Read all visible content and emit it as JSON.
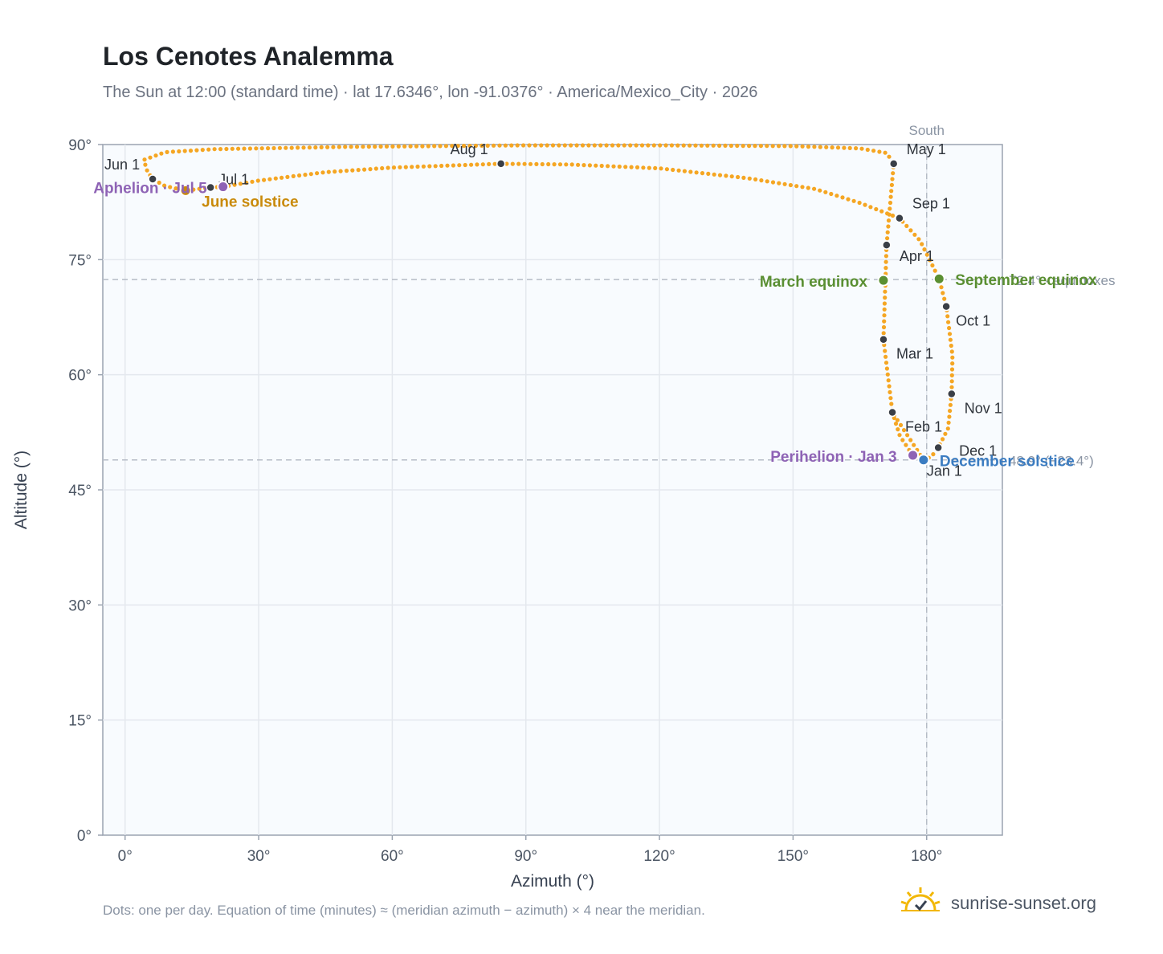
{
  "title": "Los Cenotes Analemma",
  "subtitle": "The Sun at 12:00 (standard time) · lat 17.6346°, lon -91.0376° · America/Mexico_City · 2026",
  "footnote": "Dots: one per day. Equation of time (minutes) ≈ (meridian azimuth − azimuth) × 4 near the meridian.",
  "brand": {
    "name": "sunrise-sunset.org",
    "icon": "sun-logo-icon"
  },
  "colors": {
    "curve": "#f5a623",
    "month_marker": "#3a3f47",
    "apsis": "#8e63b5",
    "equinox": "#5a8f32",
    "solstice_june": "#c98a0a",
    "solstice_december": "#3b7cc1",
    "reference_line": "#b6bcc6",
    "plot_bg": "#f8fbfe",
    "grid": "#e4e8ee",
    "axis": "#9aa3b0"
  },
  "chart_data": {
    "type": "scatter",
    "xlabel": "Azimuth (°)",
    "ylabel": "Altitude (°)",
    "xlim": [
      -5,
      197
    ],
    "ylim": [
      0,
      90
    ],
    "xticks": [
      0,
      30,
      60,
      90,
      120,
      150,
      180
    ],
    "yticks": [
      0,
      15,
      30,
      45,
      60,
      75,
      90
    ],
    "tick_suffix": "°",
    "grid": true,
    "meridian": {
      "azimuth": 180,
      "label": "South"
    },
    "reference_lines": [
      {
        "altitude": 72.4,
        "label": "72.4° · equinoxes"
      },
      {
        "altitude": 48.9,
        "label": "48.9° (−23.4°)"
      }
    ],
    "month_markers": [
      {
        "label": "Jan 1",
        "azimuth": 179.3,
        "altitude": 48.9
      },
      {
        "label": "Feb 1",
        "azimuth": 172.3,
        "altitude": 55.1
      },
      {
        "label": "Mar 1",
        "azimuth": 170.3,
        "altitude": 64.6
      },
      {
        "label": "Apr 1",
        "azimuth": 171.0,
        "altitude": 76.9
      },
      {
        "label": "May 1",
        "azimuth": 172.6,
        "altitude": 87.5
      },
      {
        "label": "Jun 1",
        "azimuth": 6.2,
        "altitude": 85.5
      },
      {
        "label": "Jul 1",
        "azimuth": 19.2,
        "altitude": 84.4
      },
      {
        "label": "Aug 1",
        "azimuth": 84.4,
        "altitude": 87.5
      },
      {
        "label": "Sep 1",
        "azimuth": 173.9,
        "altitude": 80.4
      },
      {
        "label": "Oct 1",
        "azimuth": 184.4,
        "altitude": 68.9
      },
      {
        "label": "Nov 1",
        "azimuth": 185.6,
        "altitude": 57.5
      },
      {
        "label": "Dec 1",
        "azimuth": 182.6,
        "altitude": 50.5
      }
    ],
    "events": [
      {
        "label": "March equinox",
        "azimuth": 170.3,
        "altitude": 72.3,
        "kind": "equinox"
      },
      {
        "label": "September equinox",
        "azimuth": 182.8,
        "altitude": 72.5,
        "kind": "equinox"
      },
      {
        "label": "June solstice",
        "azimuth": 13.6,
        "altitude": 84.0,
        "kind": "solstice_june"
      },
      {
        "label": "December solstice",
        "azimuth": 179.3,
        "altitude": 48.9,
        "kind": "solstice_december"
      },
      {
        "label": "Perihelion · Jan 3",
        "azimuth": 176.9,
        "altitude": 49.5,
        "kind": "apsis"
      },
      {
        "label": "Aphelion · Jul 5",
        "azimuth": 22.0,
        "altitude": 84.5,
        "kind": "apsis"
      }
    ],
    "path": [
      [
        179.3,
        48.9
      ],
      [
        172.3,
        55.1
      ],
      [
        170.3,
        64.6
      ],
      [
        171.0,
        76.9
      ],
      [
        172.6,
        87.5
      ],
      [
        171.0,
        88.9
      ],
      [
        165.0,
        89.5
      ],
      [
        150.0,
        89.8
      ],
      [
        120.0,
        89.9
      ],
      [
        90.0,
        89.9
      ],
      [
        50.0,
        89.7
      ],
      [
        20.0,
        89.4
      ],
      [
        9.0,
        89.0
      ],
      [
        4.2,
        88.0
      ],
      [
        5.0,
        86.5
      ],
      [
        6.2,
        85.5
      ],
      [
        9.0,
        84.6
      ],
      [
        13.6,
        84.0
      ],
      [
        19.2,
        84.4
      ],
      [
        22.0,
        84.5
      ],
      [
        30.0,
        85.3
      ],
      [
        45.0,
        86.4
      ],
      [
        60.0,
        87.0
      ],
      [
        84.4,
        87.5
      ],
      [
        100.0,
        87.4
      ],
      [
        120.0,
        86.9
      ],
      [
        140.0,
        85.6
      ],
      [
        155.0,
        84.2
      ],
      [
        165.0,
        82.4
      ],
      [
        173.9,
        80.4
      ],
      [
        178.5,
        77.5
      ],
      [
        182.8,
        72.5
      ],
      [
        184.4,
        68.9
      ],
      [
        185.8,
        62.5
      ],
      [
        185.6,
        57.5
      ],
      [
        184.8,
        53.0
      ],
      [
        182.6,
        50.5
      ],
      [
        181.0,
        49.3
      ],
      [
        179.3,
        48.9
      ],
      [
        176.9,
        49.5
      ],
      [
        174.0,
        52.0
      ],
      [
        172.3,
        55.1
      ]
    ]
  }
}
